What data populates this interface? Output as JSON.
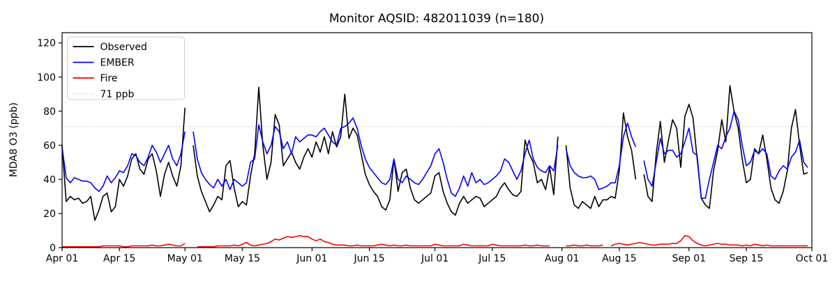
{
  "title": "Monitor AQSID: 482011039 (n=180)",
  "y_axis_label": "MDA8 O3 (ppb)",
  "colors": {
    "observed": "#000000",
    "ember": "#0000ff",
    "fire": "#ff0000",
    "threshold": "#d3d3d3",
    "legend_border": "#cccccc",
    "background": "#ffffff"
  },
  "chart_data": {
    "type": "line",
    "title": "Monitor AQSID: 482011039 (n=180)",
    "xlabel": "",
    "ylabel": "MDA8 O3 (ppb)",
    "ylim": [
      0,
      126
    ],
    "y_ticks": [
      0,
      20,
      40,
      60,
      80,
      100,
      120
    ],
    "x_ticks": [
      {
        "label": "Apr 01",
        "day": 0
      },
      {
        "label": "Apr 15",
        "day": 14
      },
      {
        "label": "May 01",
        "day": 30
      },
      {
        "label": "May 15",
        "day": 44
      },
      {
        "label": "Jun 01",
        "day": 61
      },
      {
        "label": "Jun 15",
        "day": 75
      },
      {
        "label": "Jul 01",
        "day": 91
      },
      {
        "label": "Jul 15",
        "day": 105
      },
      {
        "label": "Aug 01",
        "day": 122
      },
      {
        "label": "Aug 15",
        "day": 136
      },
      {
        "label": "Sep 01",
        "day": 153
      },
      {
        "label": "Sep 15",
        "day": 167
      },
      {
        "label": "Oct 01",
        "day": 183
      }
    ],
    "x_range_days": 183,
    "x_start_label": "Apr 01",
    "grid": false,
    "legend_position": "upper-left",
    "threshold": {
      "label": "71 ppb",
      "value": 71,
      "color": "#d3d3d3",
      "style": "dotted"
    },
    "series": [
      {
        "name": "Observed",
        "color": "#000000",
        "style": "solid",
        "values": [
          60,
          27,
          30,
          28,
          29,
          26,
          27,
          30,
          16,
          22,
          30,
          32,
          21,
          24,
          40,
          36,
          42,
          52,
          55,
          46,
          43,
          52,
          55,
          45,
          30,
          43,
          50,
          42,
          36,
          48,
          82,
          null,
          60,
          42,
          33,
          27,
          21,
          25,
          30,
          28,
          48,
          51,
          35,
          24,
          27,
          25,
          42,
          55,
          94,
          60,
          40,
          50,
          78,
          72,
          48,
          52,
          56,
          50,
          46,
          53,
          58,
          53,
          62,
          56,
          65,
          55,
          68,
          59,
          65,
          90,
          64,
          70,
          66,
          55,
          43,
          37,
          33,
          30,
          24,
          22,
          28,
          52,
          33,
          44,
          46,
          35,
          28,
          26,
          28,
          30,
          32,
          42,
          44,
          33,
          26,
          21,
          19,
          26,
          30,
          26,
          28,
          30,
          29,
          24,
          26,
          28,
          30,
          35,
          38,
          34,
          31,
          30,
          33,
          63,
          55,
          50,
          38,
          40,
          34,
          47,
          31,
          65,
          null,
          60,
          35,
          25,
          23,
          27,
          25,
          23,
          30,
          24,
          28,
          28,
          30,
          29,
          45,
          79,
          65,
          57,
          40,
          null,
          43,
          30,
          27,
          55,
          74,
          50,
          63,
          75,
          70,
          47,
          77,
          84,
          76,
          52,
          29,
          25,
          23,
          45,
          57,
          75,
          62,
          95,
          80,
          70,
          52,
          38,
          40,
          58,
          55,
          66,
          52,
          35,
          28,
          26,
          33,
          45,
          70,
          81,
          60,
          43,
          44
        ]
      },
      {
        "name": "EMBER",
        "color": "#0000ff",
        "style": "solid",
        "values": [
          59,
          41,
          38,
          41,
          40,
          39,
          39,
          38,
          35,
          33,
          36,
          42,
          38,
          41,
          45,
          44,
          48,
          55,
          54,
          50,
          48,
          53,
          60,
          56,
          50,
          55,
          60,
          52,
          48,
          55,
          68,
          null,
          68,
          52,
          44,
          40,
          37,
          35,
          40,
          36,
          40,
          34,
          40,
          38,
          36,
          38,
          50,
          52,
          72,
          62,
          55,
          60,
          71,
          68,
          58,
          62,
          55,
          65,
          62,
          64,
          66,
          66,
          65,
          68,
          70,
          66,
          62,
          60,
          70,
          71,
          73,
          76,
          70,
          60,
          52,
          47,
          44,
          41,
          38,
          37,
          40,
          52,
          40,
          38,
          42,
          40,
          38,
          37,
          40,
          44,
          48,
          55,
          58,
          50,
          40,
          32,
          30,
          35,
          42,
          36,
          44,
          38,
          40,
          37,
          38,
          40,
          42,
          45,
          52,
          50,
          45,
          40,
          45,
          55,
          63,
          52,
          47,
          45,
          44,
          48,
          45,
          60,
          null,
          58,
          48,
          44,
          42,
          41,
          41,
          42,
          40,
          34,
          35,
          36,
          38,
          38,
          48,
          65,
          73,
          65,
          59,
          null,
          51,
          40,
          36,
          50,
          64,
          55,
          57,
          57,
          53,
          55,
          62,
          70,
          56,
          54,
          29,
          29,
          40,
          50,
          60,
          58,
          65,
          70,
          80,
          75,
          60,
          48,
          50,
          57,
          55,
          58,
          55,
          42,
          40,
          45,
          48,
          46,
          53,
          56,
          63,
          50,
          47
        ]
      },
      {
        "name": "Fire",
        "color": "#ff0000",
        "style": "solid",
        "values": [
          0.5,
          0.5,
          0.5,
          0.5,
          0.5,
          0.5,
          0.5,
          0.5,
          0.5,
          0.5,
          1,
          1,
          1,
          1,
          1,
          0.5,
          0.5,
          1,
          1,
          1,
          1,
          1,
          1.5,
          1,
          1,
          1.5,
          2,
          1.5,
          1,
          1,
          2.5,
          null,
          null,
          0.5,
          0.5,
          0.5,
          0.5,
          0.5,
          1,
          1,
          1,
          1,
          1.5,
          1,
          2,
          3,
          1.5,
          1,
          1.5,
          2,
          2.5,
          3.5,
          5,
          4.5,
          5.5,
          6.5,
          6,
          6.5,
          7,
          6.5,
          6.5,
          5,
          4,
          5,
          3.5,
          3,
          2,
          1.5,
          1.5,
          1.5,
          1,
          1,
          1.5,
          1,
          1,
          1,
          1,
          1.5,
          2,
          1.5,
          1,
          1.5,
          1,
          1,
          1.5,
          1,
          1,
          1,
          1,
          1,
          1,
          2,
          1.5,
          1,
          1,
          1,
          1,
          1,
          2,
          1.5,
          1,
          1,
          1,
          1,
          1,
          2,
          1.5,
          1,
          1,
          1,
          1,
          1,
          1,
          1.5,
          1,
          1,
          1.5,
          1,
          1,
          1,
          null,
          null,
          null,
          1,
          1,
          1.5,
          1,
          1,
          1.5,
          1,
          1,
          1,
          1.5,
          null,
          1,
          2,
          2.5,
          2,
          1.5,
          2,
          2.5,
          3,
          2.5,
          2,
          1.5,
          1.5,
          2,
          2,
          2,
          2.5,
          2.5,
          4,
          7,
          6.5,
          4,
          2.5,
          1.5,
          1,
          1.5,
          2,
          2.5,
          2,
          2,
          1.5,
          1.5,
          1.5,
          1,
          1.5,
          1,
          2,
          1.5,
          1,
          1.5,
          1,
          1,
          1,
          1,
          1,
          1,
          1,
          1,
          1,
          1
        ]
      }
    ],
    "legend_entries": [
      "Observed",
      "EMBER",
      "Fire",
      "71 ppb"
    ]
  }
}
